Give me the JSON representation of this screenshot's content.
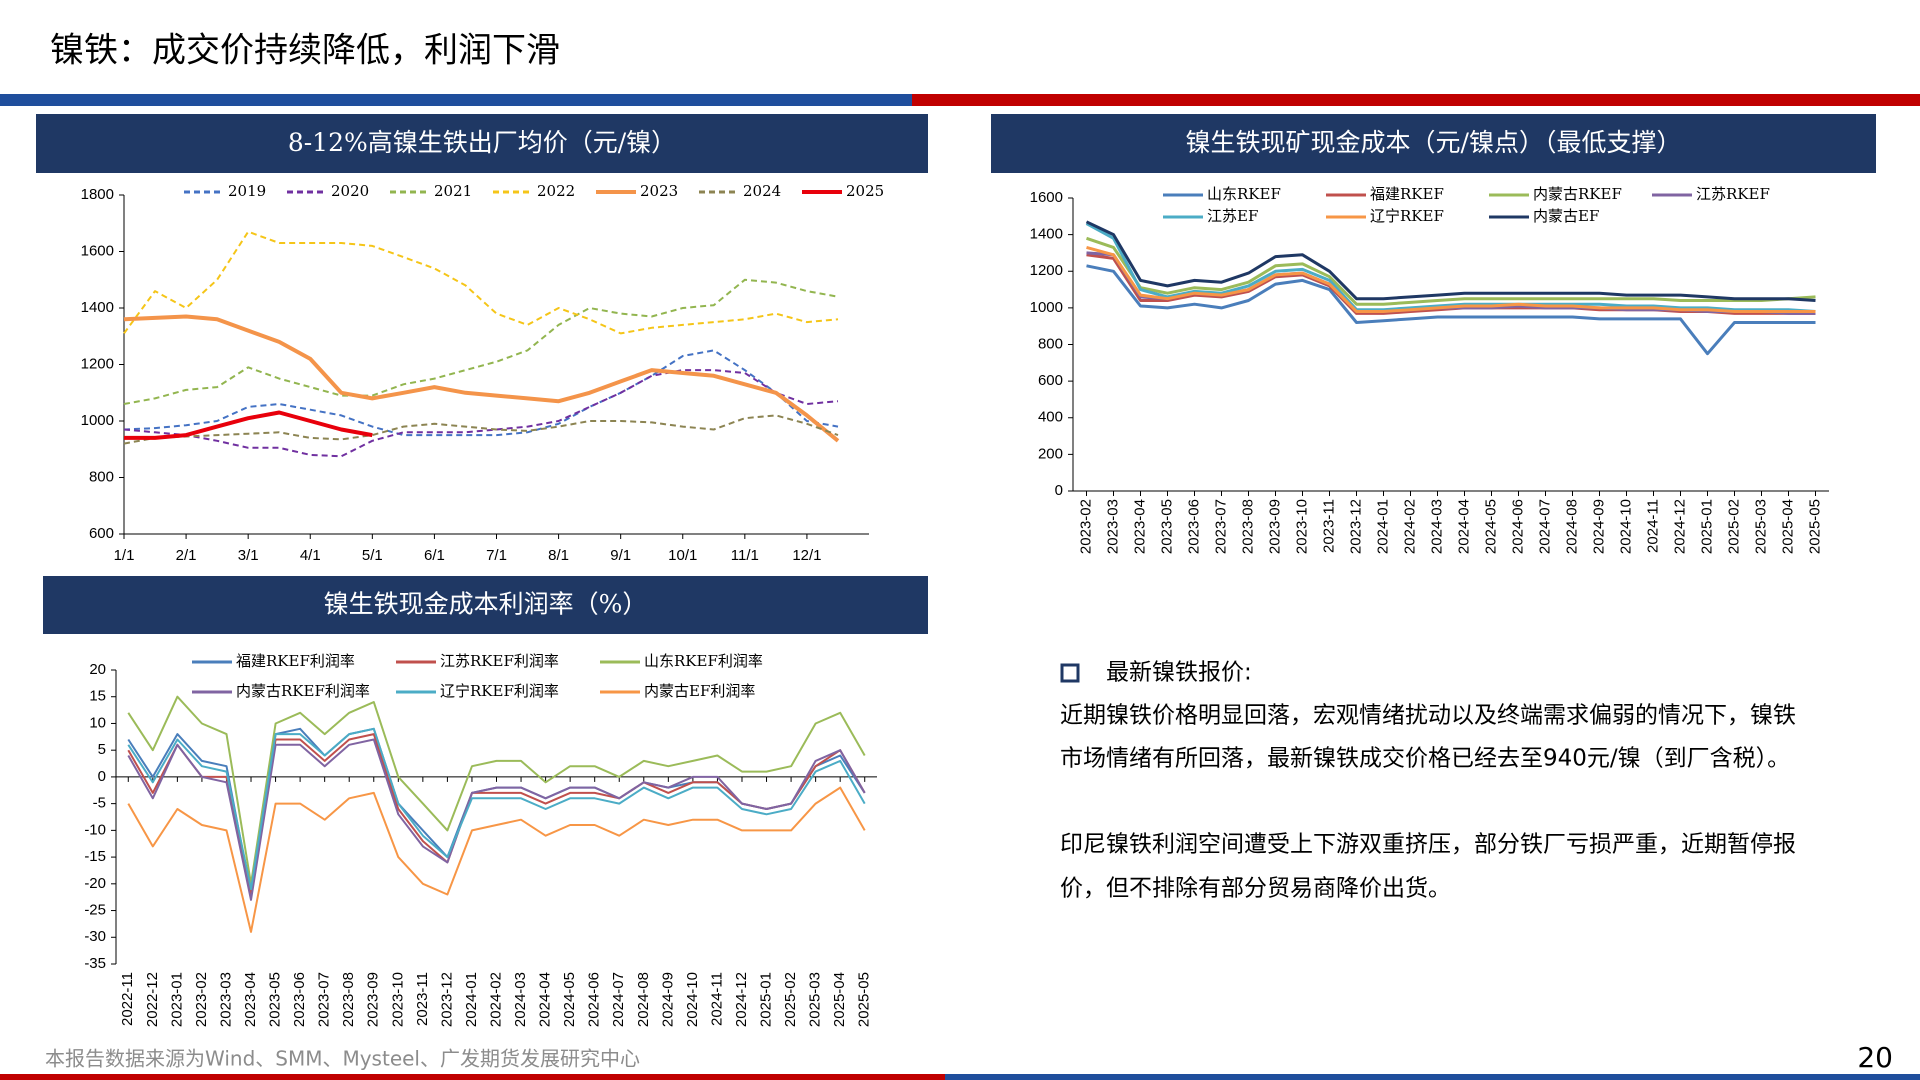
{
  "header": {
    "title": "镍铁：成交价持续降低，利润下滑"
  },
  "chart_data": [
    {
      "type": "line",
      "title": "8-12%高镍生铁出厂均价（元/镍）",
      "categories": [
        "1/1",
        null,
        "2/1",
        null,
        "3/1",
        null,
        "4/1",
        null,
        "5/1",
        null,
        "6/1",
        null,
        "7/1",
        null,
        "8/1",
        null,
        "9/1",
        null,
        "10/1",
        null,
        "11/1",
        null,
        "12/1",
        null
      ],
      "ylim": [
        600,
        1800
      ],
      "yticks": [
        600,
        800,
        1000,
        1200,
        1400,
        1600,
        1800
      ],
      "series": [
        {
          "name": "2019",
          "color": "#4472c4",
          "style": "dashed",
          "width": 2,
          "values": [
            970,
            975,
            985,
            1000,
            1050,
            1060,
            1040,
            1020,
            980,
            950,
            950,
            950,
            950,
            960,
            990,
            1050,
            1100,
            1160,
            1230,
            1250,
            1180,
            1100,
            1000,
            980
          ]
        },
        {
          "name": "2020",
          "color": "#7030a0",
          "style": "dashed",
          "width": 2,
          "values": [
            970,
            960,
            950,
            930,
            905,
            905,
            880,
            875,
            930,
            960,
            960,
            960,
            970,
            980,
            1000,
            1050,
            1100,
            1160,
            1180,
            1180,
            1170,
            1100,
            1060,
            1070
          ]
        },
        {
          "name": "2021",
          "color": "#92b54f",
          "style": "dashed",
          "width": 2,
          "values": [
            1060,
            1080,
            1110,
            1120,
            1190,
            1150,
            1120,
            1090,
            1090,
            1130,
            1150,
            1180,
            1210,
            1250,
            1340,
            1400,
            1380,
            1370,
            1400,
            1410,
            1500,
            1490,
            1460,
            1440
          ]
        },
        {
          "name": "2022",
          "color": "#f5c518",
          "style": "dashed",
          "width": 2,
          "values": [
            1310,
            1460,
            1400,
            1500,
            1670,
            1630,
            1630,
            1630,
            1620,
            1580,
            1540,
            1480,
            1380,
            1340,
            1400,
            1360,
            1310,
            1330,
            1340,
            1350,
            1360,
            1380,
            1350,
            1360
          ]
        },
        {
          "name": "2023",
          "color": "#f4944a",
          "style": "solid",
          "width": 4,
          "values": [
            1360,
            1365,
            1370,
            1360,
            1320,
            1280,
            1220,
            1100,
            1080,
            1100,
            1120,
            1100,
            1090,
            1080,
            1070,
            1100,
            1140,
            1180,
            1170,
            1160,
            1130,
            1100,
            1020,
            930
          ]
        },
        {
          "name": "2024",
          "color": "#8c8452",
          "style": "dashed",
          "width": 2,
          "values": [
            920,
            940,
            945,
            950,
            955,
            960,
            940,
            935,
            950,
            980,
            990,
            980,
            970,
            965,
            980,
            1000,
            1000,
            995,
            980,
            970,
            1010,
            1020,
            990,
            950
          ]
        },
        {
          "name": "2025",
          "color": "#e8000b",
          "style": "solid",
          "width": 4,
          "values": [
            940,
            940,
            950,
            980,
            1010,
            1030,
            1000,
            970,
            950,
            null,
            null,
            null,
            null,
            null,
            null,
            null,
            null,
            null,
            null,
            null,
            null,
            null,
            null,
            null
          ]
        }
      ]
    },
    {
      "type": "line",
      "title": "镍生铁现矿现金成本（元/镍点）（最低支撑）",
      "categories": [
        "2023-02",
        "2023-03",
        "2023-04",
        "2023-05",
        "2023-06",
        "2023-07",
        "2023-08",
        "2023-09",
        "2023-10",
        "2023-11",
        "2023-12",
        "2024-01",
        "2024-02",
        "2024-03",
        "2024-04",
        "2024-05",
        "2024-06",
        "2024-07",
        "2024-08",
        "2024-09",
        "2024-10",
        "2024-11",
        "2024-12",
        "2025-01",
        "2025-02",
        "2025-03",
        "2025-04",
        "2025-05"
      ],
      "ylim": [
        0,
        1600
      ],
      "yticks": [
        0,
        200,
        400,
        600,
        800,
        1000,
        1200,
        1400,
        1600
      ],
      "series": [
        {
          "name": "山东RKEF",
          "color": "#4a7ebb",
          "style": "solid",
          "width": 3,
          "values": [
            1230,
            1200,
            1010,
            1000,
            1020,
            1000,
            1040,
            1130,
            1150,
            1100,
            920,
            930,
            940,
            950,
            950,
            950,
            950,
            950,
            950,
            940,
            940,
            940,
            940,
            750,
            920,
            920,
            920,
            920
          ]
        },
        {
          "name": "福建RKEF",
          "color": "#c0504d",
          "style": "solid",
          "width": 3,
          "values": [
            1290,
            1270,
            1040,
            1040,
            1070,
            1060,
            1090,
            1170,
            1180,
            1120,
            970,
            970,
            980,
            990,
            1000,
            1000,
            1000,
            1000,
            1000,
            990,
            990,
            990,
            980,
            980,
            970,
            970,
            970,
            970
          ]
        },
        {
          "name": "内蒙古RKEF",
          "color": "#9bbb59",
          "style": "solid",
          "width": 3,
          "values": [
            1380,
            1330,
            1110,
            1080,
            1110,
            1100,
            1140,
            1230,
            1240,
            1170,
            1020,
            1020,
            1030,
            1040,
            1050,
            1050,
            1050,
            1050,
            1050,
            1050,
            1050,
            1050,
            1040,
            1040,
            1040,
            1040,
            1050,
            1060
          ]
        },
        {
          "name": "江苏RKEF",
          "color": "#8064a2",
          "style": "solid",
          "width": 3,
          "values": [
            1300,
            1290,
            1060,
            1050,
            1080,
            1070,
            1100,
            1180,
            1190,
            1130,
            980,
            980,
            990,
            1000,
            1000,
            1000,
            1010,
            1000,
            1000,
            1000,
            990,
            990,
            990,
            980,
            980,
            980,
            970,
            970
          ]
        },
        {
          "name": "江苏EF",
          "color": "#4bacc6",
          "style": "solid",
          "width": 3,
          "values": [
            1460,
            1380,
            1100,
            1060,
            1090,
            1080,
            1120,
            1200,
            1210,
            1150,
            990,
            990,
            1000,
            1010,
            1020,
            1020,
            1020,
            1020,
            1020,
            1020,
            1010,
            1010,
            1000,
            1000,
            990,
            990,
            990,
            980
          ]
        },
        {
          "name": "辽宁RKEF",
          "color": "#f79646",
          "style": "solid",
          "width": 3,
          "values": [
            1330,
            1290,
            1070,
            1050,
            1080,
            1070,
            1100,
            1180,
            1190,
            1130,
            980,
            980,
            990,
            1000,
            1010,
            1010,
            1020,
            1010,
            1010,
            1000,
            1000,
            1000,
            990,
            990,
            980,
            980,
            980,
            980
          ]
        },
        {
          "name": "内蒙古EF",
          "color": "#1f3864",
          "style": "solid",
          "width": 3,
          "values": [
            1470,
            1400,
            1150,
            1120,
            1150,
            1140,
            1190,
            1280,
            1290,
            1200,
            1050,
            1050,
            1060,
            1070,
            1080,
            1080,
            1080,
            1080,
            1080,
            1080,
            1070,
            1070,
            1070,
            1060,
            1050,
            1050,
            1050,
            1040
          ]
        }
      ]
    },
    {
      "type": "line",
      "title": "镍生铁现金成本利润率（%）",
      "categories": [
        "2022-11",
        "2022-12",
        "2023-01",
        "2023-02",
        "2023-03",
        "2023-04",
        "2023-05",
        "2023-06",
        "2023-07",
        "2023-08",
        "2023-09",
        "2023-10",
        "2023-11",
        "2023-12",
        "2024-01",
        "2024-02",
        "2024-03",
        "2024-04",
        "2024-05",
        "2024-06",
        "2024-07",
        "2024-08",
        "2024-09",
        "2024-10",
        "2024-11",
        "2024-12",
        "2025-01",
        "2025-02",
        "2025-03",
        "2025-04",
        "2025-05"
      ],
      "ylim": [
        -35,
        20
      ],
      "yticks": [
        -35,
        -30,
        -25,
        -20,
        -15,
        -10,
        -5,
        0,
        5,
        10,
        15,
        20
      ],
      "series": [
        {
          "name": "福建RKEF利润率",
          "color": "#4a7ebb",
          "style": "solid",
          "width": 2,
          "values": [
            7,
            0,
            8,
            3,
            2,
            -22,
            8,
            9,
            4,
            8,
            9,
            -5,
            -10,
            -15,
            -3,
            -2,
            -2,
            -4,
            -2,
            -2,
            -4,
            -1,
            -2,
            -1,
            -1,
            -5,
            -6,
            -5,
            2,
            4,
            -3
          ]
        },
        {
          "name": "江苏RKEF利润率",
          "color": "#c0504d",
          "style": "solid",
          "width": 2,
          "values": [
            5,
            -3,
            6,
            0,
            0,
            -22,
            7,
            7,
            3,
            7,
            8,
            -6,
            -12,
            -16,
            -3,
            -3,
            -3,
            -5,
            -3,
            -3,
            -4,
            -1,
            -3,
            -1,
            -1,
            -5,
            -6,
            -5,
            2,
            5,
            -3
          ]
        },
        {
          "name": "山东RKEF利润率",
          "color": "#9bbb59",
          "style": "solid",
          "width": 2,
          "values": [
            12,
            5,
            15,
            10,
            8,
            -20,
            10,
            12,
            8,
            12,
            14,
            0,
            -5,
            -10,
            2,
            3,
            3,
            -1,
            2,
            2,
            0,
            3,
            2,
            3,
            4,
            1,
            1,
            2,
            10,
            12,
            4
          ]
        },
        {
          "name": "内蒙古RKEF利润率",
          "color": "#8064a2",
          "style": "solid",
          "width": 2,
          "values": [
            4,
            -4,
            6,
            0,
            -1,
            -23,
            6,
            6,
            2,
            6,
            7,
            -7,
            -13,
            -16,
            -3,
            -2,
            -2,
            -4,
            -2,
            -2,
            -4,
            -1,
            -2,
            0,
            0,
            -5,
            -6,
            -5,
            3,
            5,
            -3
          ]
        },
        {
          "name": "辽宁RKEF利润率",
          "color": "#4bacc6",
          "style": "solid",
          "width": 2,
          "values": [
            6,
            -1,
            7,
            2,
            1,
            -21,
            8,
            8,
            4,
            8,
            9,
            -5,
            -11,
            -15,
            -4,
            -4,
            -4,
            -6,
            -4,
            -4,
            -5,
            -2,
            -4,
            -2,
            -2,
            -6,
            -7,
            -6,
            1,
            3,
            -5
          ]
        },
        {
          "name": "内蒙古EF利润率",
          "color": "#f79646",
          "style": "solid",
          "width": 2,
          "values": [
            -5,
            -13,
            -6,
            -9,
            -10,
            -29,
            -5,
            -5,
            -8,
            -4,
            -3,
            -15,
            -20,
            -22,
            -10,
            -9,
            -8,
            -11,
            -9,
            -9,
            -11,
            -8,
            -9,
            -8,
            -8,
            -10,
            -10,
            -10,
            -5,
            -2,
            -10
          ]
        }
      ]
    }
  ],
  "text": {
    "bullet": "最新镍铁报价:",
    "paragraphs": [
      [
        "近期镍铁价格明显回落，宏观情绪扰动以及终端需求偏弱的情况下，镍铁",
        "市场情绪有所回落，最新镍铁成交价格已经去至940元/镍（到厂含税）。"
      ],
      [
        "印尼镍铁利润空间遭受上下游双重挤压，部分铁厂亏损严重，近期暂停报",
        "价，但不排除有部分贸易商降价出货。"
      ]
    ]
  },
  "footer": {
    "source": "本报告数据来源为Wind、SMM、Mysteel、广发期货发展研究中心",
    "page": "20"
  }
}
